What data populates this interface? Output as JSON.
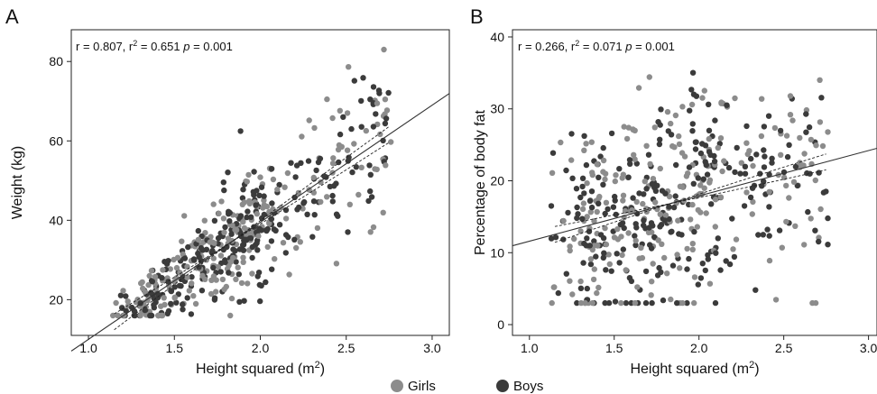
{
  "chart_data": [
    {
      "panel_label": "A",
      "type": "scatter",
      "annotation": {
        "r": "r = 0.807, r",
        "r2_sup": "2",
        "r2_val": " = 0.651 ",
        "p": "p",
        "p_val": " = 0.001"
      },
      "xlabel": "Height squared (m",
      "xlabel_sup": "2",
      "xlabel_end": ")",
      "ylabel": "Weight (kg)",
      "xlim": [
        0.9,
        3.1
      ],
      "ylim": [
        11,
        88
      ],
      "xticks": [
        "1.0",
        "1.5",
        "2.0",
        "2.5",
        "3.0"
      ],
      "yticks": [
        "20",
        "40",
        "60",
        "80"
      ],
      "regression": {
        "slope": 29.5,
        "intercept": -19.5,
        "ci_offset": 2.0,
        "ci_range": [
          1.15,
          2.75
        ]
      },
      "series": [
        {
          "name": "Girls",
          "color": "#8c8c8c"
        },
        {
          "name": "Boys",
          "color": "#3b3b3b"
        }
      ]
    },
    {
      "panel_label": "B",
      "type": "scatter",
      "annotation": {
        "r": "r = 0.266, r",
        "r2_sup": "2",
        "r2_val": " = 0.071 ",
        "p": "p",
        "p_val": " = 0.001"
      },
      "xlabel": "Height squared (m",
      "xlabel_sup": "2",
      "xlabel_end": ")",
      "ylabel": "Percentage of body fat",
      "xlim": [
        0.9,
        3.05
      ],
      "ylim": [
        -1.5,
        41
      ],
      "xticks": [
        "1.0",
        "1.5",
        "2.0",
        "2.5",
        "3.0"
      ],
      "yticks": [
        "0",
        "10",
        "20",
        "30",
        "40"
      ],
      "regression": {
        "slope": 6.3,
        "intercept": 5.3,
        "ci_offset": 1.1,
        "ci_range": [
          1.15,
          2.75
        ]
      },
      "series": [
        {
          "name": "Girls",
          "color": "#8c8c8c"
        },
        {
          "name": "Boys",
          "color": "#3b3b3b"
        }
      ]
    }
  ],
  "legend": [
    {
      "label": "Girls",
      "color": "#8c8c8c"
    },
    {
      "label": "Boys",
      "color": "#3b3b3b"
    }
  ]
}
